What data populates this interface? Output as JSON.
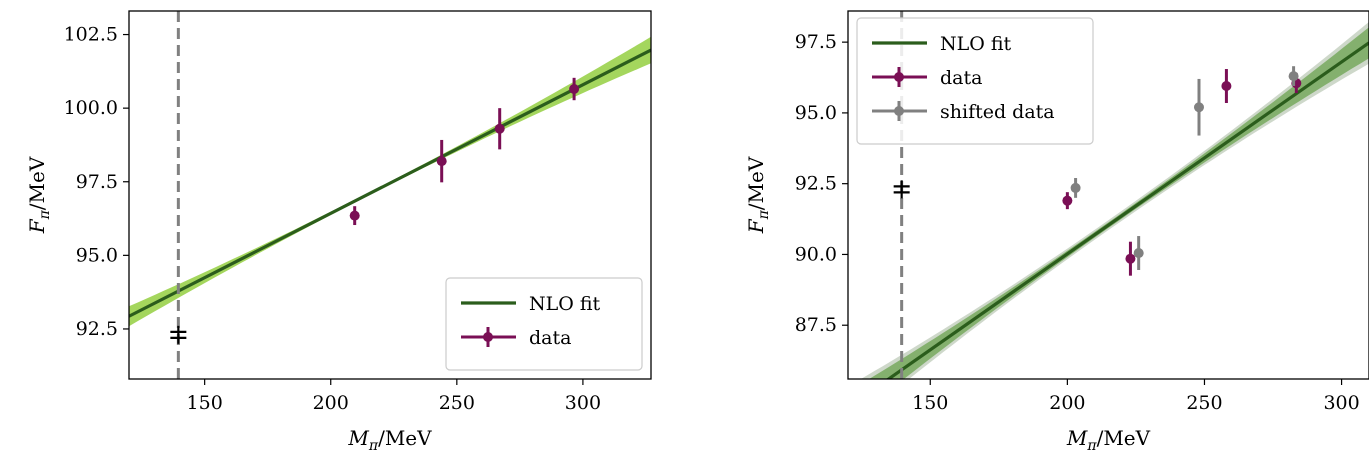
{
  "chart_data": [
    {
      "type": "line",
      "title": "",
      "xlabel": "M_π/MeV",
      "ylabel": "F_π/MeV",
      "xlim": [
        120,
        327
      ],
      "ylim": [
        90.8,
        103.3
      ],
      "xticks": [
        "150",
        "200",
        "250",
        "300"
      ],
      "yticks": [
        "92.5",
        "95.0",
        "97.5",
        "100.0",
        "102.5"
      ],
      "physical_point_line": 139.57,
      "physical_point_marker": {
        "x": 139.57,
        "y": 92.3
      },
      "fit": {
        "name": "NLO fit",
        "intercept": 87.69,
        "slope": 0.04368,
        "band_halfwidth_edge": 0.45,
        "band_halfwidth_center": 0.05,
        "band_center_x": 215
      },
      "series": [
        {
          "name": "data",
          "color": "#7a0f55",
          "points": [
            {
              "x": 209.5,
              "y": 96.35,
              "yerr": 0.32
            },
            {
              "x": 244,
              "y": 98.2,
              "yerr": 0.72
            },
            {
              "x": 267,
              "y": 99.3,
              "yerr": 0.7
            },
            {
              "x": 296.5,
              "y": 100.65,
              "yerr": 0.38
            }
          ]
        }
      ],
      "legend": {
        "placement": "lower-right",
        "entries": [
          "NLO fit",
          "data"
        ]
      },
      "grid": false
    },
    {
      "type": "line",
      "title": "",
      "xlabel": "M_π/MeV",
      "ylabel": "F_π/MeV",
      "xlim": [
        120,
        310
      ],
      "ylim": [
        85.6,
        98.6
      ],
      "xticks": [
        "150",
        "200",
        "250",
        "300"
      ],
      "yticks": [
        "87.5",
        "90.0",
        "92.5",
        "95.0",
        "97.5"
      ],
      "physical_point_line": 139.57,
      "physical_point_marker": {
        "x": 139.57,
        "y": 92.3
      },
      "fit": {
        "name": "NLO fit",
        "intercept": 76.46,
        "slope": 0.0678,
        "band_halfwidth_edge": 0.55,
        "band_halfwidth_center": 0.1,
        "band_center_x": 215
      },
      "series": [
        {
          "name": "data",
          "color": "#7a0f55",
          "points": [
            {
              "x": 200,
              "y": 91.9,
              "yerr": 0.3
            },
            {
              "x": 223,
              "y": 89.85,
              "yerr": 0.6
            },
            {
              "x": 258,
              "y": 95.95,
              "yerr": 0.6
            },
            {
              "x": 283.5,
              "y": 96.05,
              "yerr": 0.35
            }
          ]
        },
        {
          "name": "shifted data",
          "color": "#808080",
          "points": [
            {
              "x": 203,
              "y": 92.35,
              "yerr": 0.35
            },
            {
              "x": 226,
              "y": 90.05,
              "yerr": 0.6
            },
            {
              "x": 248,
              "y": 95.2,
              "yerr": 1.0
            },
            {
              "x": 282.5,
              "y": 96.3,
              "yerr": 0.35
            }
          ]
        }
      ],
      "legend": {
        "placement": "upper-left",
        "entries": [
          "NLO fit",
          "data",
          "shifted data"
        ]
      },
      "grid": false
    }
  ],
  "colors": {
    "fit_line": "#2b5d1c",
    "band_left": "#9ad14b",
    "band_right": "#5a9a3a",
    "dashed_line": "#808080",
    "marker_black": "#000000"
  }
}
